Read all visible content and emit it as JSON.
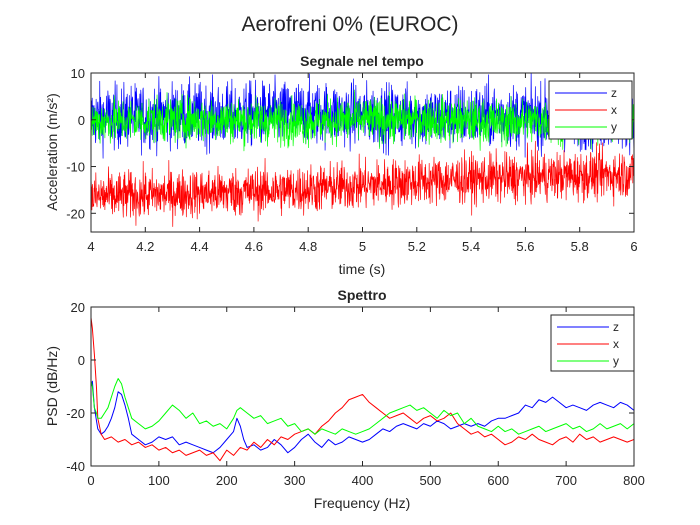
{
  "figure_title": "Aerofreni 0% (EUROC)",
  "colors": {
    "z": "#0000ff",
    "x": "#ff0000",
    "y": "#00ff00",
    "axis": "#262626"
  },
  "chart_data": [
    {
      "type": "line",
      "title": "Segnale nel tempo",
      "xlabel": "time (s)",
      "ylabel": "Acceleration (m/s²)",
      "xlim": [
        4,
        6
      ],
      "ylim": [
        -24,
        10
      ],
      "xticks": [
        4,
        4.2,
        4.4,
        4.6,
        4.8,
        5,
        5.2,
        5.4,
        5.6,
        5.8,
        6
      ],
      "xtick_labels": [
        "4",
        "4.2",
        "4.4",
        "4.6",
        "4.8",
        "5",
        "5.2",
        "5.4",
        "5.6",
        "5.8",
        "6"
      ],
      "yticks": [
        -20,
        -10,
        0,
        10
      ],
      "ytick_labels": [
        "-20",
        "-10",
        "0",
        "10"
      ],
      "grid": false,
      "legend_position": "top-right",
      "legend": [
        "z",
        "x",
        "y"
      ],
      "series": [
        {
          "name": "z",
          "color": "#0000ff",
          "x": [
            4.0,
            4.25,
            4.5,
            4.75,
            5.0,
            5.25,
            5.5,
            5.75,
            6.0
          ],
          "y": [
            0.5,
            1.0,
            1.0,
            1.5,
            1.0,
            0.5,
            1.0,
            0.5,
            0.5
          ]
        },
        {
          "name": "x",
          "color": "#ff0000",
          "x": [
            4.0,
            4.25,
            4.5,
            4.75,
            5.0,
            5.25,
            5.5,
            5.75,
            6.0
          ],
          "y": [
            -16.5,
            -16.0,
            -15.5,
            -15.0,
            -14.0,
            -13.0,
            -12.5,
            -12.0,
            -11.5
          ]
        },
        {
          "name": "y",
          "color": "#00ff00",
          "x": [
            4.0,
            4.25,
            4.5,
            4.75,
            5.0,
            5.25,
            5.5,
            5.75,
            6.0
          ],
          "y": [
            -0.5,
            0.0,
            0.0,
            -0.5,
            0.0,
            0.0,
            -0.5,
            0.0,
            0.0
          ]
        }
      ]
    },
    {
      "type": "line",
      "title": "Spettro",
      "xlabel": "Frequency (Hz)",
      "ylabel": "PSD (dB/Hz)",
      "xlim": [
        0,
        800
      ],
      "ylim": [
        -40,
        20
      ],
      "xticks": [
        0,
        100,
        200,
        300,
        400,
        500,
        600,
        700,
        800
      ],
      "xtick_labels": [
        "0",
        "100",
        "200",
        "300",
        "400",
        "500",
        "600",
        "700",
        "800"
      ],
      "yticks": [
        -40,
        -20,
        0,
        20
      ],
      "ytick_labels": [
        "-40",
        "-20",
        "0",
        "20"
      ],
      "grid": false,
      "legend_position": "top-right",
      "legend": [
        "z",
        "x",
        "y"
      ],
      "series": [
        {
          "name": "z",
          "color": "#0000ff",
          "x": [
            0,
            2,
            5,
            10,
            15,
            20,
            25,
            30,
            35,
            40,
            45,
            50,
            55,
            60,
            70,
            80,
            90,
            100,
            110,
            120,
            130,
            140,
            150,
            160,
            170,
            180,
            190,
            200,
            210,
            215,
            220,
            225,
            230,
            240,
            250,
            260,
            270,
            280,
            290,
            300,
            310,
            320,
            330,
            340,
            350,
            360,
            370,
            380,
            390,
            400,
            410,
            420,
            430,
            440,
            450,
            460,
            470,
            480,
            490,
            500,
            510,
            520,
            530,
            540,
            550,
            560,
            570,
            580,
            590,
            600,
            610,
            620,
            630,
            640,
            650,
            660,
            670,
            680,
            690,
            700,
            710,
            720,
            730,
            740,
            750,
            760,
            770,
            780,
            790,
            800
          ],
          "y": [
            -10,
            -8,
            -18,
            -26,
            -28,
            -27,
            -25,
            -22,
            -18,
            -12,
            -13,
            -17,
            -22,
            -28,
            -30,
            -32,
            -31,
            -29,
            -30,
            -29,
            -32,
            -31,
            -32,
            -33,
            -34,
            -35,
            -33,
            -30,
            -27,
            -22,
            -25,
            -30,
            -33,
            -32,
            -34,
            -33,
            -30,
            -32,
            -35,
            -33,
            -30,
            -28,
            -31,
            -33,
            -30,
            -32,
            -31,
            -29,
            -30,
            -31,
            -30,
            -28,
            -26,
            -27,
            -25,
            -24,
            -25,
            -26,
            -24,
            -25,
            -23,
            -24,
            -26,
            -25,
            -24,
            -25,
            -24,
            -25,
            -23,
            -22,
            -22,
            -21,
            -20,
            -17,
            -18,
            -15,
            -16,
            -14,
            -16,
            -18,
            -17,
            -18,
            -19,
            -17,
            -16,
            -17,
            -18,
            -16,
            -17,
            -19
          ]
        },
        {
          "name": "x",
          "color": "#ff0000",
          "x": [
            0,
            2,
            5,
            8,
            10,
            15,
            20,
            30,
            40,
            50,
            60,
            70,
            80,
            90,
            100,
            110,
            120,
            130,
            140,
            150,
            160,
            170,
            180,
            190,
            200,
            210,
            220,
            230,
            240,
            250,
            260,
            270,
            280,
            290,
            300,
            310,
            320,
            330,
            340,
            350,
            360,
            370,
            380,
            390,
            400,
            410,
            420,
            430,
            440,
            450,
            460,
            470,
            480,
            490,
            500,
            510,
            520,
            530,
            540,
            550,
            560,
            570,
            580,
            590,
            600,
            610,
            620,
            630,
            640,
            650,
            660,
            670,
            680,
            690,
            700,
            710,
            720,
            730,
            740,
            750,
            760,
            770,
            780,
            790,
            800
          ],
          "y": [
            16,
            12,
            2,
            -10,
            -22,
            -28,
            -30,
            -29,
            -31,
            -30,
            -32,
            -31,
            -33,
            -32,
            -34,
            -33,
            -35,
            -34,
            -36,
            -35,
            -34,
            -36,
            -35,
            -38,
            -34,
            -36,
            -33,
            -34,
            -31,
            -33,
            -30,
            -32,
            -29,
            -30,
            -28,
            -27,
            -26,
            -28,
            -25,
            -23,
            -20,
            -18,
            -15,
            -14,
            -13,
            -16,
            -18,
            -20,
            -22,
            -21,
            -20,
            -22,
            -24,
            -22,
            -21,
            -23,
            -22,
            -20,
            -24,
            -26,
            -28,
            -27,
            -29,
            -28,
            -30,
            -32,
            -31,
            -29,
            -30,
            -28,
            -30,
            -31,
            -32,
            -30,
            -29,
            -31,
            -28,
            -30,
            -29,
            -31,
            -30,
            -29,
            -30,
            -31,
            -30
          ]
        },
        {
          "name": "y",
          "color": "#00ff00",
          "x": [
            0,
            2,
            5,
            8,
            10,
            15,
            20,
            25,
            30,
            35,
            40,
            45,
            50,
            55,
            60,
            70,
            80,
            90,
            100,
            110,
            120,
            130,
            140,
            150,
            160,
            170,
            180,
            190,
            200,
            210,
            215,
            220,
            230,
            240,
            250,
            260,
            270,
            280,
            290,
            300,
            310,
            320,
            330,
            340,
            350,
            360,
            370,
            380,
            390,
            400,
            410,
            420,
            430,
            440,
            450,
            460,
            470,
            480,
            490,
            500,
            510,
            520,
            530,
            540,
            550,
            560,
            570,
            580,
            590,
            600,
            610,
            620,
            630,
            640,
            650,
            660,
            670,
            680,
            690,
            700,
            710,
            720,
            730,
            740,
            750,
            760,
            770,
            780,
            790,
            800
          ],
          "y": [
            -8,
            -10,
            -18,
            -20,
            -22,
            -22,
            -20,
            -18,
            -14,
            -10,
            -7,
            -9,
            -14,
            -18,
            -22,
            -24,
            -26,
            -25,
            -23,
            -20,
            -17,
            -19,
            -22,
            -20,
            -24,
            -23,
            -25,
            -24,
            -26,
            -22,
            -19,
            -18,
            -20,
            -22,
            -21,
            -24,
            -23,
            -22,
            -25,
            -24,
            -27,
            -26,
            -28,
            -26,
            -27,
            -28,
            -26,
            -27,
            -28,
            -27,
            -26,
            -24,
            -22,
            -20,
            -19,
            -18,
            -17,
            -19,
            -18,
            -20,
            -22,
            -19,
            -21,
            -20,
            -24,
            -22,
            -25,
            -26,
            -27,
            -25,
            -27,
            -26,
            -28,
            -27,
            -26,
            -25,
            -27,
            -26,
            -25,
            -24,
            -26,
            -25,
            -27,
            -26,
            -24,
            -26,
            -25,
            -24,
            -26,
            -24
          ]
        }
      ]
    }
  ]
}
